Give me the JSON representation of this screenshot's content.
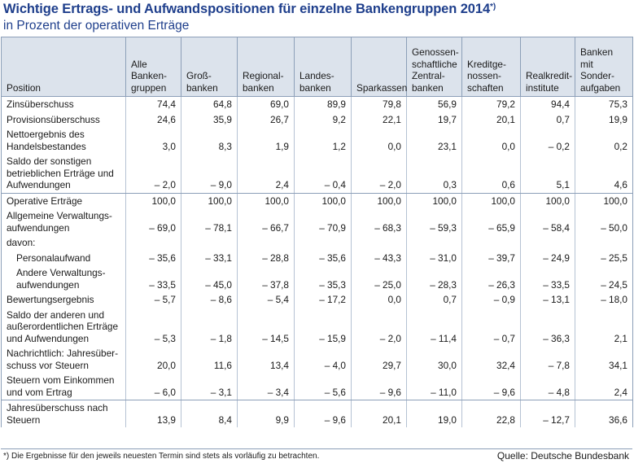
{
  "title": "Wichtige Ertrags- und Aufwandspositionen für einzelne Bankengruppen 2014",
  "title_marker": "*)",
  "subtitle": "in Prozent der operativen Erträge",
  "columns": [
    "Position",
    "Alle Banken­gruppen",
    "Groß­banken",
    "Regional­banken",
    "Landes­banken",
    "Sparkassen",
    "Genossen­schaftliche Zentral­banken",
    "Kreditge­nossen­schaften",
    "Realkredit­institute",
    "Banken mit Sonder­aufgaben"
  ],
  "rows": [
    {
      "label": "Zinsüberschuss",
      "values": [
        "74,4",
        "64,8",
        "69,0",
        "89,9",
        "79,8",
        "56,9",
        "79,2",
        "94,4",
        "75,3"
      ]
    },
    {
      "label": "Provisionsüberschuss",
      "values": [
        "24,6",
        "35,9",
        "26,7",
        "9,2",
        "22,1",
        "19,7",
        "20,1",
        "0,7",
        "19,9"
      ]
    },
    {
      "label": "Nettoergebnis des Handelsbestandes",
      "values": [
        "3,0",
        "8,3",
        "1,9",
        "1,2",
        "0,0",
        "23,1",
        "0,0",
        "– 0,2",
        "0,2"
      ]
    },
    {
      "label": "Saldo der sonstigen betrieblichen Erträge und Aufwendungen",
      "values": [
        "– 2,0",
        "– 9,0",
        "2,4",
        "– 0,4",
        "– 2,0",
        "0,3",
        "0,6",
        "5,1",
        "4,6"
      ]
    },
    {
      "label": "Operative Erträge",
      "values": [
        "100,0",
        "100,0",
        "100,0",
        "100,0",
        "100,0",
        "100,0",
        "100,0",
        "100,0",
        "100,0"
      ]
    },
    {
      "label": "Allgemeine Verwaltungs­aufwendungen",
      "values": [
        "– 69,0",
        "– 78,1",
        "– 66,7",
        "– 70,9",
        "– 68,3",
        "– 59,3",
        "– 65,9",
        "– 58,4",
        "– 50,0"
      ]
    },
    {
      "label": "davon:",
      "values": [
        "",
        "",
        "",
        "",
        "",
        "",
        "",
        "",
        ""
      ]
    },
    {
      "label": "Personalaufwand",
      "values": [
        "– 35,6",
        "– 33,1",
        "– 28,8",
        "– 35,6",
        "– 43,3",
        "– 31,0",
        "– 39,7",
        "– 24,9",
        "– 25,5"
      ]
    },
    {
      "label": "Andere Verwaltungs­aufwendungen",
      "values": [
        "– 33,5",
        "– 45,0",
        "– 37,8",
        "– 35,3",
        "– 25,0",
        "– 28,3",
        "– 26,3",
        "– 33,5",
        "– 24,5"
      ]
    },
    {
      "label": "Bewertungsergebnis",
      "values": [
        "– 5,7",
        "– 8,6",
        "– 5,4",
        "– 17,2",
        "0,0",
        "0,7",
        "– 0,9",
        "– 13,1",
        "– 18,0"
      ]
    },
    {
      "label": "Saldo der anderen und außerordentlichen Erträge und Aufwendungen",
      "values": [
        "– 5,3",
        "– 1,8",
        "– 14,5",
        "– 15,9",
        "– 2,0",
        "– 11,4",
        "– 0,7",
        "– 36,3",
        "2,1"
      ]
    },
    {
      "label": "Nachrichtlich: Jahresüber­schuss vor Steuern",
      "values": [
        "20,0",
        "11,6",
        "13,4",
        "– 4,0",
        "29,7",
        "30,0",
        "32,4",
        "– 7,8",
        "34,1"
      ]
    },
    {
      "label": "Steuern vom Einkommen und vom Ertrag",
      "values": [
        "– 6,0",
        "– 3,1",
        "– 3,4",
        "– 5,6",
        "– 9,6",
        "– 11,0",
        "– 9,6",
        "– 4,8",
        "2,4"
      ]
    },
    {
      "label": "Jahresüberschuss nach Steuern",
      "values": [
        "13,9",
        "8,4",
        "9,9",
        "– 9,6",
        "20,1",
        "19,0",
        "22,8",
        "– 12,7",
        "36,6"
      ]
    }
  ],
  "footnote": "*) Die Ergebnisse für den jeweils neuesten Termin sind stets als vorläufig zu betrachten.",
  "source": "Quelle: Deutsche Bundesbank"
}
